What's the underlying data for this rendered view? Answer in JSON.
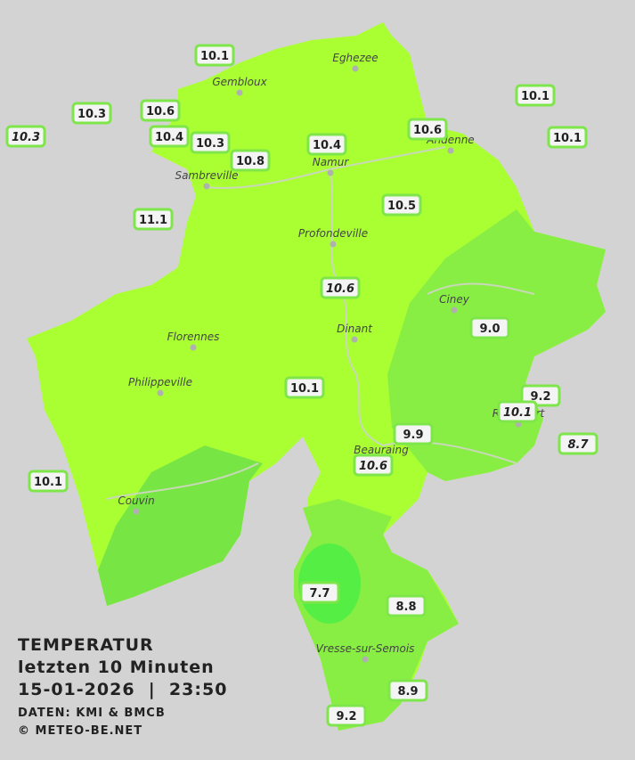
{
  "title": "TEMPERATUR",
  "subtitle": "letzten 10 Minuten",
  "datetime": "15-01-2026  |  23:50",
  "source": "DATEN: KMI & BMCB",
  "copyright": "© METEO-BE.NET",
  "cities": [
    "Eghezee",
    "Gembloux",
    "Andenne",
    "Namur",
    "Sambreville",
    "Profondeville",
    "Ciney",
    "Florennes",
    "Dinant",
    "Philippeville",
    "Rochefort",
    "Beauraing",
    "Couvin",
    "Vresse-sur-Semois"
  ],
  "stations": [
    "10.1",
    "10.3",
    "10.3",
    "10.6",
    "10.4",
    "10.3",
    "10.8",
    "10.4",
    "10.6",
    "10.1",
    "10.1",
    "11.1",
    "10.5",
    "10.6",
    "9.0",
    "10.1",
    "9.2",
    "10.1",
    "8.7",
    "9.9",
    "10.6",
    "10.1",
    "7.7",
    "8.8",
    "8.9",
    "9.2"
  ]
}
